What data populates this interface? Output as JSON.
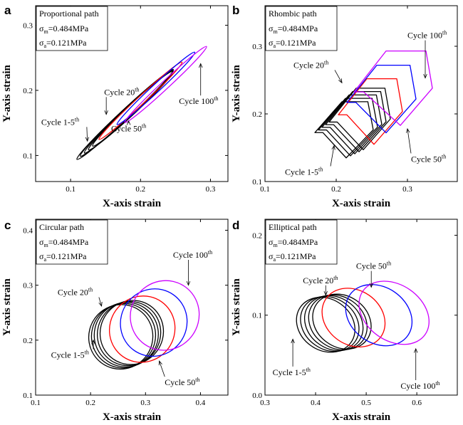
{
  "chart_data": [
    {
      "id": "a",
      "type": "line",
      "panel_label": "a",
      "path_name": "Proportional path",
      "sigma_m": "=0.484MPa",
      "sigma_a": "=0.121MPa",
      "xlabel": "X-axis strain",
      "ylabel": "Y-axis strain",
      "xlim": [
        0.05,
        0.325
      ],
      "ylim": [
        0.06,
        0.33
      ],
      "xticks": [
        0.1,
        0.2,
        0.3
      ],
      "yticks": [
        0.1,
        0.2,
        0.3
      ],
      "xtick_labels": [
        "0.1",
        "0.2",
        "0.3"
      ],
      "ytick_labels": [
        "0.1",
        "0.2",
        "0.3"
      ],
      "shape": "proportional",
      "series": [
        {
          "name": "Cycle 1-5th",
          "color": "#000000",
          "loops": [
            {
              "cx": 0.178,
              "cy": 0.163,
              "a": 0.072,
              "b": 0.007
            },
            {
              "cx": 0.18,
              "cy": 0.165,
              "a": 0.069,
              "b": 0.007
            },
            {
              "cx": 0.183,
              "cy": 0.167,
              "a": 0.066,
              "b": 0.007
            },
            {
              "cx": 0.186,
              "cy": 0.169,
              "a": 0.063,
              "b": 0.007
            },
            {
              "cx": 0.189,
              "cy": 0.172,
              "a": 0.06,
              "b": 0.007
            }
          ]
        },
        {
          "name": "Cycle 20th",
          "color": "#ff0000",
          "loops": [
            {
              "cx": 0.2,
              "cy": 0.184,
              "a": 0.062,
              "b": 0.006
            }
          ]
        },
        {
          "name": "Cycle 50th",
          "color": "#0000ff",
          "loops": [
            {
              "cx": 0.222,
              "cy": 0.203,
              "a": 0.058,
              "b": 0.006
            }
          ]
        },
        {
          "name": "Cycle 100th",
          "color": "#cc00ff",
          "loops": [
            {
              "cx": 0.236,
              "cy": 0.209,
              "a": 0.061,
              "b": 0.006
            }
          ]
        }
      ],
      "annotations": [
        {
          "text": "Cycle 1-5",
          "sup": "th",
          "tx": 0.058,
          "ty": 0.147,
          "px": 0.124,
          "py": 0.122
        },
        {
          "text": "Cycle 20",
          "sup": "th",
          "tx": 0.148,
          "ty": 0.193,
          "px": 0.151,
          "py": 0.163
        },
        {
          "text": "Cycle 50",
          "sup": "th",
          "tx": 0.158,
          "ty": 0.137,
          "px": 0.183,
          "py": 0.153
        },
        {
          "text": "Cycle 100",
          "sup": "th",
          "tx": 0.255,
          "ty": 0.179,
          "px": 0.286,
          "py": 0.241
        }
      ]
    },
    {
      "id": "b",
      "type": "line",
      "panel_label": "b",
      "path_name": "Rhombic path",
      "sigma_m": "=0.484MPa",
      "sigma_a": "=0.121MPa",
      "xlabel": "X-axis strain",
      "ylabel": "Y-axis strain",
      "xlim": [
        0.1,
        0.37
      ],
      "ylim": [
        0.1,
        0.36
      ],
      "xticks": [
        0.1,
        0.2,
        0.3
      ],
      "yticks": [
        0.1,
        0.2,
        0.3
      ],
      "xtick_labels": [
        "0.1",
        "0.2",
        "0.3"
      ],
      "ytick_labels": [
        "0.1",
        "0.2",
        "0.3"
      ],
      "shape": "rhombic",
      "series": [
        {
          "name": "Cycle 1-5th",
          "color": "#000000",
          "loops": [
            {
              "x0": 0.17,
              "x1": 0.252,
              "y0": 0.135,
              "y1": 0.218,
              "dx": 0.038
            },
            {
              "x0": 0.175,
              "x1": 0.258,
              "y0": 0.138,
              "y1": 0.223,
              "dx": 0.038
            },
            {
              "x0": 0.18,
              "x1": 0.264,
              "y0": 0.141,
              "y1": 0.228,
              "dx": 0.038
            },
            {
              "x0": 0.185,
              "x1": 0.27,
              "y0": 0.144,
              "y1": 0.233,
              "dx": 0.038
            },
            {
              "x0": 0.19,
              "x1": 0.276,
              "y0": 0.147,
              "y1": 0.238,
              "dx": 0.038
            }
          ]
        },
        {
          "name": "Cycle 20th",
          "color": "#ff0000",
          "loops": [
            {
              "x0": 0.203,
              "x1": 0.293,
              "y0": 0.155,
              "y1": 0.252,
              "dx": 0.04
            }
          ]
        },
        {
          "name": "Cycle 50th",
          "color": "#0000ff",
          "loops": [
            {
              "x0": 0.215,
              "x1": 0.312,
              "y0": 0.172,
              "y1": 0.272,
              "dx": 0.042
            }
          ]
        },
        {
          "name": "Cycle 100th",
          "color": "#cc00ff",
          "loops": [
            {
              "x0": 0.225,
              "x1": 0.335,
              "y0": 0.183,
              "y1": 0.293,
              "dx": 0.045
            }
          ]
        }
      ],
      "annotations": [
        {
          "text": "Cycle 1-5",
          "sup": "th",
          "tx": 0.128,
          "ty": 0.11,
          "px": 0.197,
          "py": 0.153
        },
        {
          "text": "Cycle 20",
          "sup": "th",
          "tx": 0.14,
          "ty": 0.268,
          "px": 0.208,
          "py": 0.246
        },
        {
          "text": "Cycle 50",
          "sup": "th",
          "tx": 0.305,
          "ty": 0.129,
          "px": 0.3,
          "py": 0.178
        },
        {
          "text": "Cycle 100",
          "sup": "th",
          "tx": 0.3,
          "ty": 0.312,
          "px": 0.325,
          "py": 0.253
        }
      ]
    },
    {
      "id": "c",
      "type": "line",
      "panel_label": "c",
      "path_name": "Circular path",
      "sigma_m": "=0.484MPa",
      "sigma_a": "=0.121MPa",
      "xlabel": "X-axis strain",
      "ylabel": "Y-axis strain",
      "xlim": [
        0.1,
        0.45
      ],
      "ylim": [
        0.1,
        0.42
      ],
      "xticks": [
        0.1,
        0.2,
        0.3,
        0.4
      ],
      "yticks": [
        0.1,
        0.2,
        0.3,
        0.4
      ],
      "xtick_labels": [
        "0.1",
        "0.2",
        "0.3",
        "0.4"
      ],
      "ytick_labels": [
        "0.1",
        "0.2",
        "0.3",
        "0.4"
      ],
      "shape": "ellipse",
      "series": [
        {
          "name": "Cycle 1-5th",
          "color": "#000000",
          "loops": [
            {
              "cx": 0.255,
              "cy": 0.206,
              "rx": 0.058,
              "ry": 0.059
            },
            {
              "cx": 0.26,
              "cy": 0.208,
              "rx": 0.058,
              "ry": 0.059
            },
            {
              "cx": 0.265,
              "cy": 0.21,
              "rx": 0.058,
              "ry": 0.059
            },
            {
              "cx": 0.27,
              "cy": 0.212,
              "rx": 0.057,
              "ry": 0.059
            },
            {
              "cx": 0.275,
              "cy": 0.214,
              "rx": 0.057,
              "ry": 0.059
            }
          ]
        },
        {
          "name": "Cycle 20th",
          "color": "#ff0000",
          "loops": [
            {
              "cx": 0.294,
              "cy": 0.22,
              "rx": 0.059,
              "ry": 0.061
            }
          ]
        },
        {
          "name": "Cycle 50th",
          "color": "#0000ff",
          "loops": [
            {
              "cx": 0.315,
              "cy": 0.232,
              "rx": 0.06,
              "ry": 0.062
            }
          ]
        },
        {
          "name": "Cycle 100th",
          "color": "#cc00ff",
          "loops": [
            {
              "cx": 0.335,
              "cy": 0.245,
              "rx": 0.062,
              "ry": 0.064
            }
          ]
        }
      ],
      "annotations": [
        {
          "text": "Cycle 1-5",
          "sup": "th",
          "tx": 0.128,
          "ty": 0.168,
          "px": 0.205,
          "py": 0.2
        },
        {
          "text": "Cycle 20",
          "sup": "th",
          "tx": 0.14,
          "ty": 0.282,
          "px": 0.22,
          "py": 0.262
        },
        {
          "text": "Cycle 50",
          "sup": "th",
          "tx": 0.335,
          "ty": 0.118,
          "px": 0.325,
          "py": 0.162
        },
        {
          "text": "Cycle 100",
          "sup": "th",
          "tx": 0.35,
          "ty": 0.35,
          "px": 0.378,
          "py": 0.3
        }
      ]
    },
    {
      "id": "d",
      "type": "line",
      "panel_label": "d",
      "path_name": "Elliptical path",
      "sigma_m": "=0.484MPa",
      "sigma_a": "=0.121MPa",
      "xlabel": "X-axis strain",
      "ylabel": "Y-axis strain",
      "xlim": [
        0.3,
        0.68
      ],
      "ylim": [
        0.0,
        0.22
      ],
      "xticks": [
        0.3,
        0.4,
        0.5,
        0.6
      ],
      "yticks": [
        0.0,
        0.1,
        0.2
      ],
      "xtick_labels": [
        "0.3",
        "0.4",
        "0.5",
        "0.6"
      ],
      "ytick_labels": [
        "0.0",
        "0.1",
        "0.2"
      ],
      "shape": "ellipse",
      "series": [
        {
          "name": "Cycle 1-5th",
          "color": "#000000",
          "loops": [
            {
              "cx": 0.42,
              "cy": 0.088,
              "rx": 0.061,
              "ry": 0.032
            },
            {
              "cx": 0.428,
              "cy": 0.089,
              "rx": 0.061,
              "ry": 0.032
            },
            {
              "cx": 0.436,
              "cy": 0.09,
              "rx": 0.061,
              "ry": 0.032
            },
            {
              "cx": 0.444,
              "cy": 0.091,
              "rx": 0.061,
              "ry": 0.032
            },
            {
              "cx": 0.452,
              "cy": 0.092,
              "rx": 0.061,
              "ry": 0.032
            }
          ]
        },
        {
          "name": "Cycle 20th",
          "color": "#ff0000",
          "loops": [
            {
              "cx": 0.475,
              "cy": 0.097,
              "rx": 0.066,
              "ry": 0.034
            }
          ]
        },
        {
          "name": "Cycle 50th",
          "color": "#0000ff",
          "loops": [
            {
              "cx": 0.525,
              "cy": 0.1,
              "rx": 0.07,
              "ry": 0.035
            }
          ]
        },
        {
          "name": "Cycle 100th",
          "color": "#cc00ff",
          "loops": [
            {
              "cx": 0.555,
              "cy": 0.103,
              "rx": 0.075,
              "ry": 0.035
            }
          ]
        }
      ],
      "annotations": [
        {
          "text": "Cycle 1-5",
          "sup": "th",
          "tx": 0.315,
          "ty": 0.025,
          "px": 0.355,
          "py": 0.07
        },
        {
          "text": "Cycle 20",
          "sup": "th",
          "tx": 0.375,
          "ty": 0.14,
          "px": 0.42,
          "py": 0.125
        },
        {
          "text": "Cycle 50",
          "sup": "th",
          "tx": 0.48,
          "ty": 0.158,
          "px": 0.51,
          "py": 0.135
        },
        {
          "text": "Cycle 100",
          "sup": "th",
          "tx": 0.568,
          "ty": 0.008,
          "px": 0.598,
          "py": 0.058
        }
      ]
    }
  ]
}
